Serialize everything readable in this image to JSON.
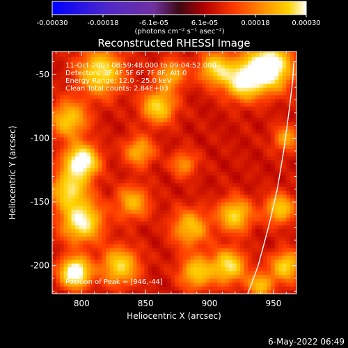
{
  "chart_data": {
    "type": "heatmap",
    "title": "Reconstructed RHESSI Image",
    "xlabel": "Heliocentric X (arcsec)",
    "ylabel": "Heliocentric Y (arcsec)",
    "xlim": [
      777,
      968
    ],
    "ylim": [
      -222,
      -32
    ],
    "xticks": [
      800,
      850,
      900,
      950
    ],
    "yticks": [
      -50,
      -100,
      -150,
      -200
    ],
    "colorbar": {
      "label": "(photons cm⁻² s⁻¹ asec⁻²)",
      "range": [
        -0.0003,
        0.0003
      ],
      "ticks": [
        "-0.00030",
        "-0.00018",
        "-6.1e-05",
        "6.1e-05",
        "0.00018",
        "0.00030"
      ],
      "colormap": [
        "#0000ff",
        "#5028c8",
        "#7030a0",
        "#3c0a14",
        "#b40000",
        "#ff3c00",
        "#ff9600",
        "#ffd200",
        "#ffffff"
      ]
    },
    "annotations": [
      "11-Oct-2003 08:59:48.000 to 09:04:52.000",
      "Detectors: 3F 4F 5F 6F 7F 8F, Att 0",
      "Energy Range: 12.0 - 25.0 keV",
      "Clean     Total counts: 2.84E+03"
    ],
    "peak_label": "Position of Peak = [946,-44]",
    "peak": [
      946,
      -44
    ],
    "limb_curve": [
      [
        930,
        -222
      ],
      [
        938,
        -200
      ],
      [
        946,
        -170
      ],
      [
        953,
        -140
      ],
      [
        958,
        -110
      ],
      [
        962,
        -80
      ],
      [
        965,
        -55
      ],
      [
        966,
        -40
      ]
    ],
    "grid": false
  },
  "footer": {
    "timestamp": "6-May-2022 06:49"
  }
}
